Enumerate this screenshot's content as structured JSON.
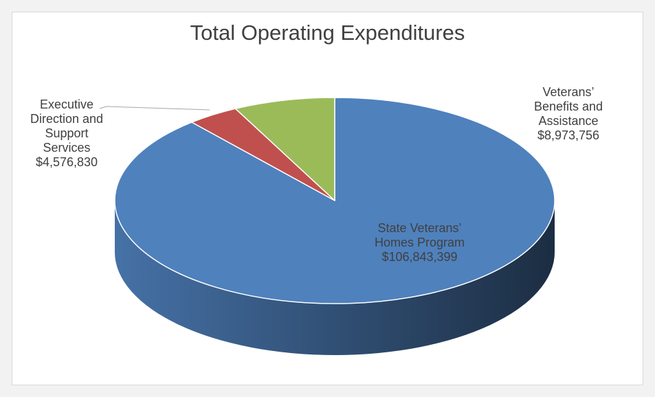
{
  "chart_data": {
    "type": "pie",
    "title": "Total Operating Expenditures",
    "categories": [
      "State Veterans’ Homes Program",
      "Executive Direction and Support Services",
      "Veterans’ Benefits and Assistance"
    ],
    "values": [
      106843399,
      4576830,
      8973756
    ],
    "value_labels": [
      "$106,843,399",
      "$4,576,830",
      "$8,973,756"
    ],
    "colors": [
      "#4f81bd",
      "#c0504d",
      "#9bbb59"
    ]
  }
}
